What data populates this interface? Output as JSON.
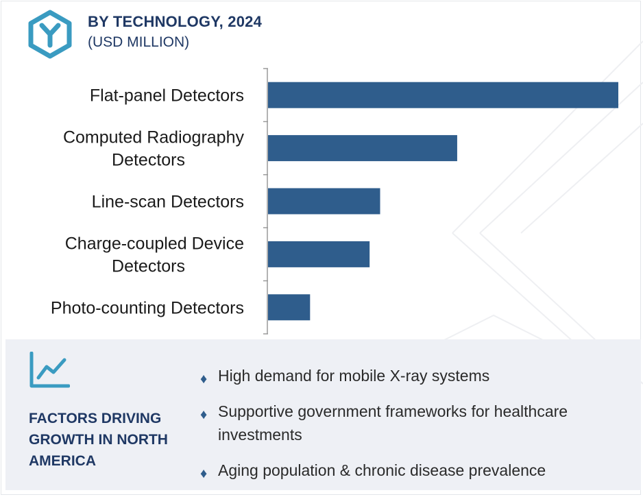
{
  "header": {
    "title": "BY TECHNOLOGY, 2024",
    "subtitle": "(USD MILLION)",
    "logo_icon": "hexagon-y-logo-icon"
  },
  "colors": {
    "bar": "#2f5d8c",
    "title": "#1f3864",
    "panel_bg": "#eef0f5",
    "logo": "#3a9bc1"
  },
  "chart_data": {
    "type": "bar",
    "orientation": "horizontal",
    "title": "BY TECHNOLOGY, 2024",
    "subtitle": "(USD MILLION)",
    "categories": [
      [
        "Flat-panel Detectors"
      ],
      [
        "Computed Radiography",
        "Detectors"
      ],
      [
        "Line-scan Detectors"
      ],
      [
        "Charge-coupled Device",
        "Detectors"
      ],
      [
        "Photo-counting Detectors"
      ]
    ],
    "values": [
      100,
      54,
      32,
      29,
      12
    ],
    "xlim": [
      0,
      100
    ],
    "xlabel": "",
    "ylabel": "",
    "grid": false,
    "axis_tick_labels_shown": false
  },
  "factors_panel": {
    "icon": "trend-chart-icon",
    "title": "FACTORS DRIVING GROWTH IN NORTH AMERICA",
    "items": [
      "High demand for mobile X-ray systems",
      "Supportive government frameworks for healthcare investments",
      "Aging population & chronic disease prevalence"
    ]
  }
}
